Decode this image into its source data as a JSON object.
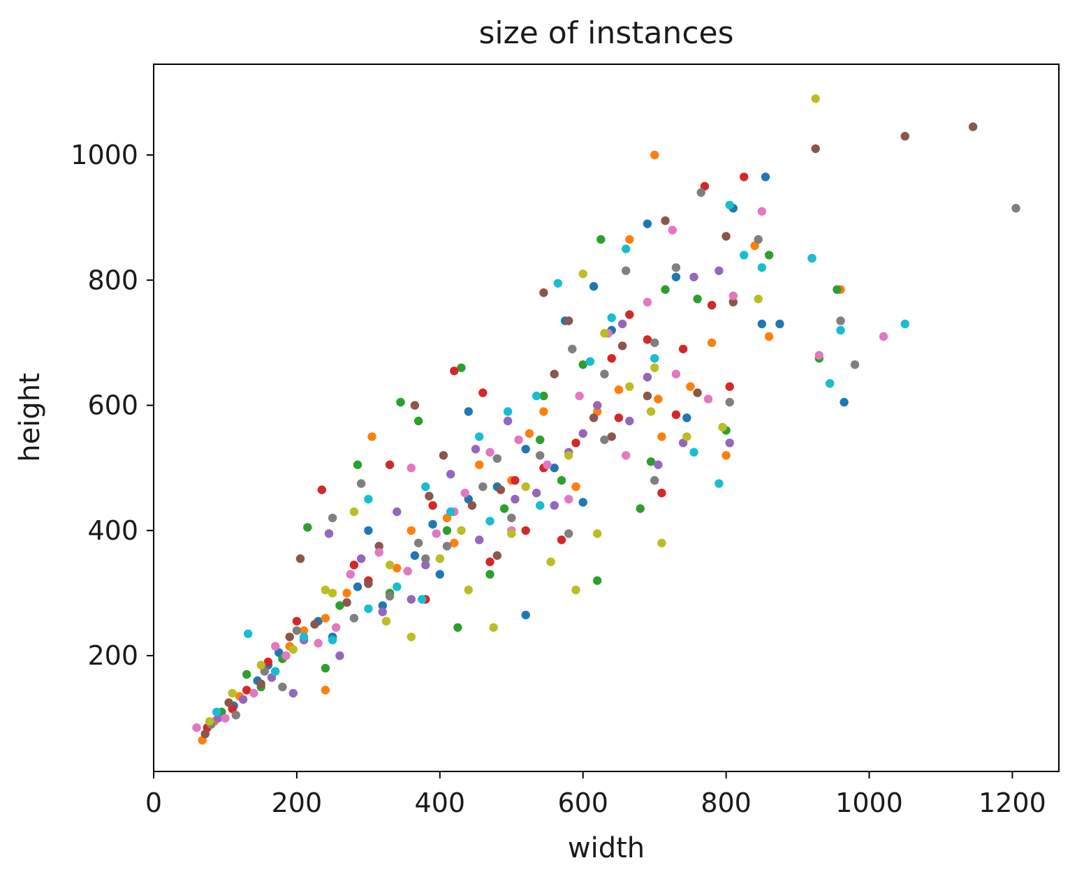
{
  "chart_data": {
    "type": "scatter",
    "title": "size of instances",
    "xlabel": "width",
    "ylabel": "height",
    "xlim": [
      0,
      1265
    ],
    "ylim": [
      15,
      1145
    ],
    "xticks": [
      0,
      200,
      400,
      600,
      800,
      1000,
      1200
    ],
    "yticks": [
      200,
      400,
      600,
      800,
      1000
    ],
    "grid": false,
    "legend": "none",
    "palette": [
      "#1f77b4",
      "#ff7f0e",
      "#2ca02c",
      "#d62728",
      "#9467bd",
      "#8c564b",
      "#e377c2",
      "#7f7f7f",
      "#bcbd22",
      "#17becf"
    ],
    "marker_size": 4,
    "series": [
      {
        "color": "#1f77b4",
        "points": [
          [
            112,
            120
          ],
          [
            145,
            160
          ],
          [
            175,
            205
          ],
          [
            230,
            255
          ],
          [
            285,
            310
          ],
          [
            320,
            280
          ],
          [
            365,
            360
          ],
          [
            400,
            330
          ],
          [
            440,
            450
          ],
          [
            480,
            470
          ],
          [
            520,
            530
          ],
          [
            560,
            500
          ],
          [
            615,
            790
          ],
          [
            520,
            265
          ],
          [
            440,
            590
          ],
          [
            575,
            735
          ],
          [
            690,
            890
          ],
          [
            745,
            580
          ],
          [
            810,
            915
          ],
          [
            855,
            965
          ],
          [
            875,
            730
          ],
          [
            965,
            605
          ],
          [
            300,
            400
          ],
          [
            250,
            230
          ],
          [
            160,
            185
          ],
          [
            390,
            410
          ],
          [
            600,
            445
          ],
          [
            640,
            720
          ],
          [
            730,
            805
          ],
          [
            850,
            730
          ]
        ]
      },
      {
        "color": "#ff7f0e",
        "points": [
          [
            68,
            65
          ],
          [
            85,
            95
          ],
          [
            120,
            135
          ],
          [
            190,
            215
          ],
          [
            240,
            260
          ],
          [
            305,
            550
          ],
          [
            360,
            400
          ],
          [
            410,
            420
          ],
          [
            455,
            505
          ],
          [
            500,
            480
          ],
          [
            545,
            590
          ],
          [
            590,
            470
          ],
          [
            650,
            625
          ],
          [
            700,
            1000
          ],
          [
            750,
            630
          ],
          [
            800,
            520
          ],
          [
            840,
            855
          ],
          [
            960,
            785
          ],
          [
            860,
            710
          ],
          [
            210,
            240
          ],
          [
            270,
            300
          ],
          [
            340,
            340
          ],
          [
            665,
            865
          ],
          [
            710,
            550
          ],
          [
            780,
            700
          ],
          [
            240,
            145
          ],
          [
            420,
            380
          ],
          [
            525,
            555
          ],
          [
            620,
            590
          ],
          [
            705,
            610
          ]
        ]
      },
      {
        "color": "#2ca02c",
        "points": [
          [
            95,
            110
          ],
          [
            130,
            170
          ],
          [
            180,
            195
          ],
          [
            215,
            405
          ],
          [
            260,
            280
          ],
          [
            285,
            505
          ],
          [
            345,
            605
          ],
          [
            370,
            575
          ],
          [
            430,
            660
          ],
          [
            490,
            435
          ],
          [
            540,
            545
          ],
          [
            600,
            665
          ],
          [
            625,
            865
          ],
          [
            680,
            435
          ],
          [
            715,
            785
          ],
          [
            760,
            770
          ],
          [
            800,
            560
          ],
          [
            860,
            840
          ],
          [
            955,
            785
          ],
          [
            930,
            675
          ],
          [
            425,
            245
          ],
          [
            545,
            615
          ],
          [
            620,
            320
          ],
          [
            570,
            480
          ],
          [
            470,
            330
          ],
          [
            410,
            400
          ],
          [
            330,
            300
          ],
          [
            240,
            180
          ],
          [
            150,
            150
          ],
          [
            695,
            510
          ]
        ]
      },
      {
        "color": "#d62728",
        "points": [
          [
            75,
            85
          ],
          [
            110,
            115
          ],
          [
            160,
            190
          ],
          [
            200,
            255
          ],
          [
            235,
            465
          ],
          [
            300,
            320
          ],
          [
            330,
            505
          ],
          [
            390,
            440
          ],
          [
            420,
            655
          ],
          [
            460,
            620
          ],
          [
            505,
            480
          ],
          [
            545,
            500
          ],
          [
            590,
            540
          ],
          [
            640,
            675
          ],
          [
            665,
            745
          ],
          [
            710,
            460
          ],
          [
            740,
            690
          ],
          [
            780,
            760
          ],
          [
            805,
            630
          ],
          [
            825,
            965
          ],
          [
            770,
            950
          ],
          [
            470,
            350
          ],
          [
            520,
            400
          ],
          [
            380,
            290
          ],
          [
            280,
            345
          ],
          [
            130,
            145
          ],
          [
            690,
            705
          ],
          [
            570,
            385
          ],
          [
            650,
            580
          ],
          [
            730,
            585
          ]
        ]
      },
      {
        "color": "#9467bd",
        "points": [
          [
            90,
            100
          ],
          [
            125,
            130
          ],
          [
            165,
            165
          ],
          [
            210,
            225
          ],
          [
            245,
            395
          ],
          [
            290,
            355
          ],
          [
            340,
            430
          ],
          [
            380,
            345
          ],
          [
            415,
            490
          ],
          [
            450,
            530
          ],
          [
            495,
            575
          ],
          [
            535,
            460
          ],
          [
            580,
            525
          ],
          [
            620,
            600
          ],
          [
            665,
            575
          ],
          [
            705,
            505
          ],
          [
            755,
            805
          ],
          [
            790,
            815
          ],
          [
            805,
            540
          ],
          [
            655,
            730
          ],
          [
            360,
            290
          ],
          [
            320,
            270
          ],
          [
            260,
            200
          ],
          [
            195,
            140
          ],
          [
            560,
            440
          ],
          [
            455,
            385
          ],
          [
            600,
            555
          ],
          [
            690,
            645
          ],
          [
            740,
            540
          ],
          [
            505,
            450
          ]
        ]
      },
      {
        "color": "#8c564b",
        "points": [
          [
            72,
            75
          ],
          [
            105,
            125
          ],
          [
            150,
            155
          ],
          [
            190,
            230
          ],
          [
            225,
            250
          ],
          [
            270,
            285
          ],
          [
            315,
            375
          ],
          [
            365,
            600
          ],
          [
            405,
            520
          ],
          [
            445,
            440
          ],
          [
            485,
            465
          ],
          [
            545,
            780
          ],
          [
            580,
            735
          ],
          [
            615,
            580
          ],
          [
            655,
            695
          ],
          [
            715,
            895
          ],
          [
            760,
            620
          ],
          [
            810,
            765
          ],
          [
            920,
            835
          ],
          [
            925,
            1010
          ],
          [
            1050,
            1030
          ],
          [
            1145,
            1045
          ],
          [
            480,
            360
          ],
          [
            385,
            455
          ],
          [
            300,
            315
          ],
          [
            205,
            355
          ],
          [
            640,
            550
          ],
          [
            690,
            615
          ],
          [
            560,
            650
          ],
          [
            800,
            870
          ]
        ]
      },
      {
        "color": "#e377c2",
        "points": [
          [
            60,
            85
          ],
          [
            100,
            100
          ],
          [
            140,
            140
          ],
          [
            185,
            200
          ],
          [
            230,
            220
          ],
          [
            275,
            330
          ],
          [
            315,
            365
          ],
          [
            355,
            335
          ],
          [
            395,
            395
          ],
          [
            435,
            460
          ],
          [
            470,
            525
          ],
          [
            510,
            545
          ],
          [
            550,
            505
          ],
          [
            595,
            615
          ],
          [
            635,
            715
          ],
          [
            690,
            765
          ],
          [
            725,
            880
          ],
          [
            775,
            610
          ],
          [
            810,
            775
          ],
          [
            850,
            910
          ],
          [
            1020,
            710
          ],
          [
            930,
            680
          ],
          [
            420,
            430
          ],
          [
            360,
            500
          ],
          [
            255,
            245
          ],
          [
            170,
            215
          ],
          [
            500,
            400
          ],
          [
            580,
            450
          ],
          [
            660,
            520
          ],
          [
            730,
            650
          ]
        ]
      },
      {
        "color": "#7f7f7f",
        "points": [
          [
            80,
            90
          ],
          [
            115,
            105
          ],
          [
            155,
            175
          ],
          [
            200,
            240
          ],
          [
            250,
            420
          ],
          [
            290,
            475
          ],
          [
            330,
            295
          ],
          [
            370,
            380
          ],
          [
            410,
            375
          ],
          [
            460,
            470
          ],
          [
            500,
            420
          ],
          [
            540,
            520
          ],
          [
            585,
            690
          ],
          [
            630,
            650
          ],
          [
            660,
            815
          ],
          [
            700,
            700
          ],
          [
            730,
            820
          ],
          [
            765,
            940
          ],
          [
            805,
            605
          ],
          [
            845,
            865
          ],
          [
            980,
            665
          ],
          [
            960,
            735
          ],
          [
            1205,
            915
          ],
          [
            580,
            395
          ],
          [
            480,
            515
          ],
          [
            380,
            355
          ],
          [
            280,
            260
          ],
          [
            180,
            150
          ],
          [
            630,
            545
          ],
          [
            700,
            480
          ]
        ]
      },
      {
        "color": "#bcbd22",
        "points": [
          [
            78,
            95
          ],
          [
            110,
            140
          ],
          [
            150,
            185
          ],
          [
            195,
            210
          ],
          [
            240,
            305
          ],
          [
            280,
            430
          ],
          [
            325,
            255
          ],
          [
            360,
            230
          ],
          [
            400,
            355
          ],
          [
            440,
            305
          ],
          [
            475,
            245
          ],
          [
            520,
            470
          ],
          [
            555,
            350
          ],
          [
            590,
            305
          ],
          [
            600,
            810
          ],
          [
            630,
            715
          ],
          [
            665,
            630
          ],
          [
            695,
            590
          ],
          [
            710,
            380
          ],
          [
            745,
            550
          ],
          [
            795,
            565
          ],
          [
            845,
            770
          ],
          [
            925,
            1090
          ],
          [
            580,
            520
          ],
          [
            500,
            395
          ],
          [
            430,
            400
          ],
          [
            330,
            345
          ],
          [
            250,
            300
          ],
          [
            620,
            395
          ],
          [
            700,
            660
          ]
        ]
      },
      {
        "color": "#17becf",
        "points": [
          [
            88,
            110
          ],
          [
            132,
            235
          ],
          [
            170,
            175
          ],
          [
            210,
            230
          ],
          [
            250,
            225
          ],
          [
            300,
            450
          ],
          [
            340,
            310
          ],
          [
            375,
            290
          ],
          [
            415,
            430
          ],
          [
            455,
            550
          ],
          [
            495,
            590
          ],
          [
            535,
            615
          ],
          [
            565,
            795
          ],
          [
            610,
            670
          ],
          [
            660,
            850
          ],
          [
            700,
            675
          ],
          [
            755,
            525
          ],
          [
            790,
            475
          ],
          [
            825,
            840
          ],
          [
            850,
            820
          ],
          [
            920,
            835
          ],
          [
            945,
            635
          ],
          [
            960,
            720
          ],
          [
            1050,
            730
          ],
          [
            805,
            920
          ],
          [
            540,
            440
          ],
          [
            470,
            415
          ],
          [
            380,
            470
          ],
          [
            300,
            275
          ],
          [
            640,
            740
          ]
        ]
      }
    ]
  }
}
